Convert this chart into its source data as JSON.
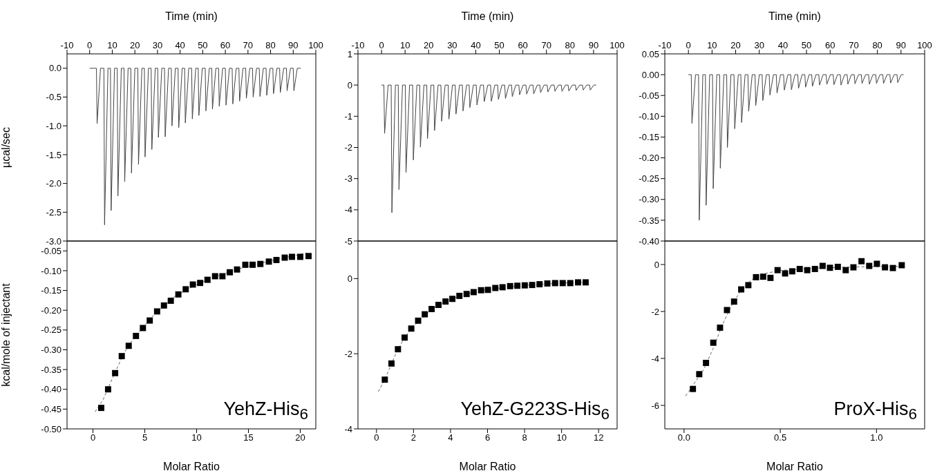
{
  "chart_data": [
    {
      "type": "line",
      "xlabel": "Time (min)",
      "ylabel": "µcal/sec",
      "color": "#444444",
      "xlim": [
        -10,
        100
      ],
      "xticks": [
        -10,
        0,
        10,
        20,
        30,
        40,
        50,
        60,
        70,
        80,
        90,
        100
      ],
      "ylim": [
        -3,
        0.25
      ],
      "yticks": [
        {
          "value": 0,
          "label": "0.0"
        },
        -0.5,
        {
          "value": -1,
          "label": "-1.0"
        },
        -1.5,
        {
          "value": -2,
          "label": "-2.0"
        },
        -2.5,
        {
          "value": -3,
          "label": "-3.0"
        }
      ],
      "x": [
        0,
        3.0,
        3.3,
        4.8,
        6.3,
        6.6,
        8.1,
        9.2,
        9.5,
        11.0,
        12.2,
        12.5,
        14.0,
        15.2,
        15.5,
        17.0,
        18.2,
        18.5,
        20.0,
        21.3,
        21.6,
        23.1,
        24.2,
        24.5,
        26.0,
        27.2,
        27.5,
        29.0,
        30.1,
        30.4,
        31.9,
        33.1,
        33.4,
        34.9,
        36.1,
        36.4,
        37.9,
        39.1,
        39.4,
        40.9,
        42.0,
        42.3,
        43.8,
        45.1,
        45.4,
        46.9,
        48.0,
        48.3,
        49.8,
        51.1,
        51.4,
        52.9,
        54.0,
        54.3,
        55.8,
        57.0,
        57.3,
        58.8,
        60.0,
        60.3,
        61.8,
        63.0,
        63.3,
        64.8,
        66.0,
        66.3,
        67.8,
        69.0,
        69.3,
        70.8,
        72.0,
        72.3,
        73.8,
        75.0,
        75.3,
        76.8,
        78.0,
        78.3,
        79.8,
        81.0,
        81.3,
        82.8,
        84.0,
        84.3,
        85.8,
        87.0,
        87.3,
        88.8,
        90.0,
        90.3,
        91.8,
        93.3
      ],
      "values": [
        0,
        0,
        -0.96,
        0,
        0,
        -2.72,
        0,
        0,
        -2.47,
        0,
        0,
        -2.22,
        0,
        0,
        -1.97,
        0,
        0,
        -1.82,
        0,
        0,
        -1.67,
        0,
        0,
        -1.54,
        0,
        0,
        -1.41,
        0,
        0,
        -1.2,
        0,
        0,
        -1.19,
        0,
        0,
        -1.0,
        0,
        0,
        -1.03,
        0,
        0,
        -0.95,
        0,
        0,
        -0.88,
        0,
        0,
        -0.82,
        0,
        0,
        -0.74,
        0,
        0,
        -0.71,
        0,
        0,
        -0.66,
        0,
        0,
        -0.64,
        0,
        0,
        -0.62,
        0,
        0,
        -0.57,
        0,
        0,
        -0.52,
        0,
        0,
        -0.5,
        0,
        0,
        -0.49,
        0,
        0,
        -0.47,
        0,
        0,
        -0.44,
        0,
        0,
        -0.42,
        0,
        0,
        -0.39,
        0,
        0,
        -0.39,
        0,
        0
      ]
    },
    {
      "type": "line",
      "xlabel": "Time (min)",
      "color": "#444444",
      "xlim": [
        -10,
        100
      ],
      "xticks": [
        -10,
        0,
        10,
        20,
        30,
        40,
        50,
        60,
        70,
        80,
        90,
        100
      ],
      "ylim": [
        -5,
        1
      ],
      "yticks": [
        1,
        0,
        -1,
        -2,
        -3,
        -4,
        -5
      ],
      "x": [
        0,
        1.0,
        1.3,
        2.8,
        4.1,
        4.4,
        5.9,
        7.1,
        7.4,
        8.9,
        10.1,
        10.4,
        11.9,
        13.2,
        13.5,
        15.0,
        16.2,
        16.5,
        18.0,
        19.2,
        19.5,
        21.0,
        22.2,
        22.5,
        24.0,
        25.2,
        25.5,
        27.0,
        28.3,
        28.6,
        30.1,
        31.3,
        31.6,
        33.1,
        34.3,
        34.6,
        36.1,
        37.2,
        37.5,
        39.0,
        40.2,
        40.5,
        42.0,
        43.3,
        43.6,
        45.1,
        46.3,
        46.6,
        48.1,
        49.3,
        49.6,
        51.1,
        52.3,
        52.6,
        54.1,
        55.2,
        55.5,
        57.0,
        58.3,
        58.6,
        60.1,
        61.3,
        61.6,
        63.1,
        64.3,
        64.6,
        66.1,
        67.2,
        67.5,
        69.0,
        70.3,
        70.6,
        72.1,
        73.3,
        73.6,
        75.1,
        76.3,
        76.6,
        78.1,
        79.2,
        79.5,
        81.0,
        82.3,
        82.6,
        84.1,
        85.3,
        85.6,
        87.1,
        88.3,
        88.6,
        90.1,
        91.1
      ],
      "values": [
        0,
        0,
        -1.55,
        0,
        0,
        -4.09,
        0,
        0,
        -3.35,
        0,
        0,
        -2.8,
        0,
        0,
        -2.4,
        0,
        0,
        -1.99,
        0,
        0,
        -1.72,
        0,
        0,
        -1.46,
        0,
        0,
        -1.16,
        0,
        0,
        -1.09,
        0,
        0,
        -0.93,
        0,
        0,
        -0.83,
        0,
        0,
        -0.72,
        0,
        0,
        -0.64,
        0,
        0,
        -0.53,
        0,
        0,
        -0.52,
        0,
        0,
        -0.46,
        0,
        0,
        -0.43,
        0,
        0,
        -0.37,
        0,
        0,
        -0.31,
        0,
        0,
        -0.29,
        0,
        0,
        -0.28,
        0,
        0,
        -0.24,
        0,
        0,
        -0.22,
        0,
        0,
        -0.2,
        0,
        0,
        -0.2,
        0,
        0,
        -0.19,
        0,
        0,
        -0.17,
        0,
        0,
        -0.16,
        0,
        0,
        -0.16,
        0,
        0
      ]
    },
    {
      "type": "line",
      "xlabel": "Time (min)",
      "color": "#444444",
      "xlim": [
        -10,
        100
      ],
      "xticks": [
        -10,
        0,
        10,
        20,
        30,
        40,
        50,
        60,
        70,
        80,
        90,
        100
      ],
      "ylim": [
        -0.4,
        0.05
      ],
      "yticks": [
        0.05,
        {
          "value": 0,
          "label": "0.00"
        },
        -0.05,
        {
          "value": -0.1,
          "label": "-0.10"
        },
        -0.15,
        {
          "value": -0.2,
          "label": "-0.20"
        },
        -0.25,
        {
          "value": -0.3,
          "label": "-0.30"
        },
        -0.35,
        {
          "value": -0.4,
          "label": "-0.40"
        }
      ],
      "x": [
        0,
        1.2,
        1.5,
        3.0,
        4.3,
        4.6,
        6.1,
        7.2,
        7.5,
        9.0,
        10.2,
        10.5,
        12.0,
        13.2,
        13.5,
        15.0,
        16.2,
        16.5,
        18.0,
        19.3,
        19.6,
        21.1,
        22.2,
        22.5,
        24.0,
        25.2,
        25.5,
        27.0,
        28.2,
        28.5,
        30.0,
        31.2,
        31.5,
        33.0,
        34.2,
        34.5,
        36.0,
        37.2,
        37.5,
        39.0,
        40.3,
        40.6,
        42.1,
        43.3,
        43.6,
        45.1,
        46.3,
        46.6,
        48.1,
        49.3,
        49.6,
        51.1,
        52.2,
        52.5,
        54.0,
        55.2,
        55.5,
        57.0,
        58.3,
        58.6,
        60.1,
        61.3,
        61.6,
        63.1,
        64.3,
        64.6,
        66.1,
        67.2,
        67.5,
        69.0,
        70.2,
        70.5,
        72.0,
        73.2,
        73.5,
        75.0,
        76.3,
        76.6,
        78.1,
        79.3,
        79.6,
        81.1,
        82.3,
        82.6,
        84.1,
        85.3,
        85.6,
        87.1,
        88.3,
        88.6,
        90.1,
        91.1
      ],
      "values": [
        0,
        0,
        -0.117,
        0,
        0,
        -0.35,
        0,
        0,
        -0.314,
        0,
        0,
        -0.274,
        0,
        0,
        -0.225,
        0,
        0,
        -0.175,
        0,
        0,
        -0.13,
        0,
        0,
        -0.115,
        0,
        0,
        -0.088,
        0,
        0,
        -0.074,
        0,
        0,
        -0.062,
        0,
        0,
        -0.049,
        0,
        0,
        -0.044,
        0,
        0,
        -0.037,
        0,
        0,
        -0.036,
        0,
        0,
        -0.033,
        0,
        0,
        -0.03,
        0,
        0,
        -0.028,
        0,
        0,
        -0.025,
        0,
        0,
        -0.023,
        0,
        0,
        -0.024,
        0,
        0,
        -0.025,
        0,
        0,
        -0.023,
        0,
        0,
        -0.022,
        0,
        0,
        -0.021,
        0,
        0,
        -0.023,
        0,
        0,
        -0.021,
        0,
        0,
        -0.021,
        0,
        0,
        -0.02,
        0,
        0,
        -0.019,
        0,
        0
      ]
    },
    {
      "type": "scatter",
      "xlabel": "Molar Ratio",
      "ylabel": "kcal/mole of injectant",
      "annotations": [
        "YehZ-His$_{6}$"
      ],
      "xlim": [
        -2.5,
        21.5
      ],
      "xticks": [
        0,
        5,
        10,
        15,
        20
      ],
      "ylim": [
        -0.5,
        -0.025
      ],
      "yticks": [
        -0.05,
        {
          "value": -0.1,
          "label": "-0.10"
        },
        -0.15,
        {
          "value": -0.2,
          "label": "-0.20"
        },
        -0.25,
        {
          "value": -0.3,
          "label": "-0.30"
        },
        -0.35,
        {
          "value": -0.4,
          "label": "-0.40"
        },
        -0.45,
        {
          "value": -0.5,
          "label": "-0.50"
        }
      ],
      "series": [
        {
          "marker": "square",
          "color": "#000000",
          "x": [
            0.8,
            1.46,
            2.14,
            2.78,
            3.45,
            4.15,
            4.82,
            5.48,
            6.19,
            6.85,
            7.51,
            8.24,
            8.95,
            9.64,
            10.34,
            11.05,
            11.78,
            12.49,
            13.2,
            13.9,
            14.7,
            15.4,
            16.15,
            16.97,
            17.7,
            18.5,
            19.2,
            20.0,
            20.8
          ],
          "values": [
            -0.447,
            -0.4,
            -0.359,
            -0.316,
            -0.29,
            -0.265,
            -0.245,
            -0.226,
            -0.203,
            -0.188,
            -0.176,
            -0.16,
            -0.147,
            -0.135,
            -0.131,
            -0.123,
            -0.114,
            -0.114,
            -0.104,
            -0.097,
            -0.085,
            -0.085,
            -0.083,
            -0.077,
            -0.073,
            -0.067,
            -0.065,
            -0.065,
            -0.063
          ]
        },
        {
          "type": "line",
          "marker": "none",
          "color": "#666666",
          "line_style": "dashed",
          "x": [
            0.2,
            1,
            2,
            3,
            4,
            5,
            6,
            8,
            10,
            12,
            14,
            16,
            18,
            20.6
          ],
          "values": [
            -0.457,
            -0.425,
            -0.365,
            -0.308,
            -0.268,
            -0.238,
            -0.208,
            -0.163,
            -0.135,
            -0.113,
            -0.096,
            -0.082,
            -0.07,
            -0.055
          ]
        }
      ]
    },
    {
      "type": "scatter",
      "xlabel": "Molar Ratio",
      "annotations": [
        "YehZ-G223S-His$_{6}$"
      ],
      "xlim": [
        -1,
        13
      ],
      "xticks": [
        0,
        2,
        4,
        6,
        8,
        10,
        12
      ],
      "ylim": [
        -4,
        1
      ],
      "yticks": [
        0,
        -2,
        -4
      ],
      "series": [
        {
          "marker": "square",
          "color": "#000000",
          "x": [
            0.45,
            0.81,
            1.16,
            1.52,
            1.88,
            2.25,
            2.61,
            2.98,
            3.35,
            3.73,
            4.1,
            4.48,
            4.87,
            5.25,
            5.65,
            6.02,
            6.42,
            6.81,
            7.22,
            7.61,
            8.01,
            8.41,
            8.81,
            9.23,
            9.65,
            10.06,
            10.47,
            10.89,
            11.3
          ],
          "values": [
            -2.69,
            -2.26,
            -1.88,
            -1.57,
            -1.33,
            -1.12,
            -0.95,
            -0.81,
            -0.7,
            -0.61,
            -0.54,
            -0.46,
            -0.41,
            -0.36,
            -0.31,
            -0.3,
            -0.25,
            -0.23,
            -0.2,
            -0.19,
            -0.18,
            -0.17,
            -0.15,
            -0.13,
            -0.12,
            -0.12,
            -0.12,
            -0.1,
            -0.1
          ]
        },
        {
          "type": "line",
          "marker": "none",
          "color": "#666666",
          "line_style": "dashed",
          "x": [
            0.1,
            0.5,
            1,
            1.5,
            2,
            3,
            4,
            5,
            6,
            8,
            10,
            11.3
          ],
          "values": [
            -3.01,
            -2.63,
            -2.05,
            -1.58,
            -1.27,
            -0.81,
            -0.55,
            -0.39,
            -0.29,
            -0.18,
            -0.12,
            -0.1
          ]
        }
      ]
    },
    {
      "type": "scatter",
      "xlabel": "Molar Ratio",
      "annotations": [
        "ProX-His$_{6}$"
      ],
      "xlim": [
        -0.1,
        1.25
      ],
      "xticks": [
        {
          "value": 0,
          "label": "0.0"
        },
        0.5,
        {
          "value": 1,
          "label": "1.0"
        }
      ],
      "ylim": [
        -7,
        1
      ],
      "yticks": [
        0,
        -2,
        -4,
        -6
      ],
      "series": [
        {
          "marker": "square",
          "color": "#000000",
          "x": [
            0.046,
            0.079,
            0.114,
            0.152,
            0.187,
            0.223,
            0.26,
            0.297,
            0.334,
            0.374,
            0.411,
            0.449,
            0.486,
            0.525,
            0.562,
            0.601,
            0.64,
            0.68,
            0.72,
            0.758,
            0.799,
            0.84,
            0.88,
            0.922,
            0.962,
            1.002,
            1.044,
            1.085,
            1.131
          ],
          "values": [
            -5.3,
            -4.67,
            -4.19,
            -3.33,
            -2.69,
            -1.94,
            -1.58,
            -1.06,
            -0.88,
            -0.54,
            -0.52,
            -0.57,
            -0.24,
            -0.38,
            -0.29,
            -0.19,
            -0.24,
            -0.19,
            -0.06,
            -0.14,
            -0.1,
            -0.24,
            -0.12,
            0.14,
            -0.06,
            0.03,
            -0.12,
            -0.15,
            -0.03
          ]
        },
        {
          "type": "line",
          "marker": "none",
          "color": "#666666",
          "line_style": "dashed",
          "x": [
            0.008,
            0.05,
            0.1,
            0.15,
            0.2,
            0.25,
            0.3,
            0.35,
            0.4,
            0.5,
            0.7,
            0.9,
            1.13
          ],
          "values": [
            -5.6,
            -5.1,
            -4.5,
            -3.6,
            -2.55,
            -1.7,
            -1.05,
            -0.65,
            -0.42,
            -0.25,
            -0.15,
            -0.1,
            -0.08
          ]
        }
      ]
    }
  ]
}
